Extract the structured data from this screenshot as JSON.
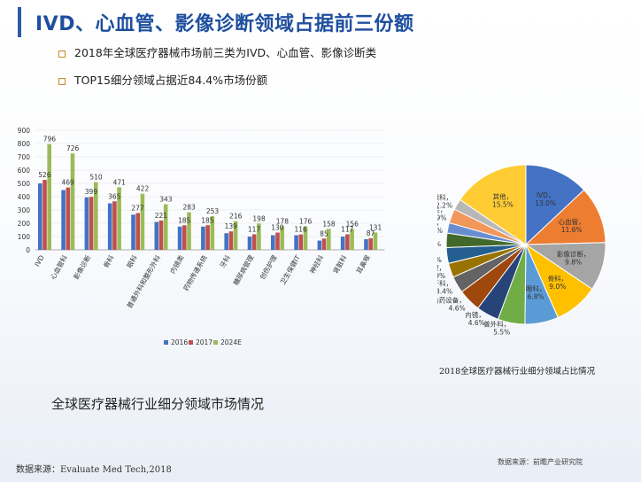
{
  "title": "IVD、心血管、影像诊断领域占据前三份额",
  "bullets": [
    "2018年全球医疗器械市场前三类为IVD、心血管、影像诊断类",
    "TOP15细分领域占据近84.4%市场份额"
  ],
  "bar_chart_title": "全球医疗器械行业细分领域市场情况",
  "pie_chart_title": "2018全球医疗器械行业细分领域占比情况",
  "source_left": "数据来源：Evaluate Med Tech,2018",
  "source_right": "数据来源：前瞻产业研究院",
  "chart_data": [
    {
      "type": "bar",
      "categories": [
        "IVD",
        "心血管科",
        "影像诊断",
        "骨科",
        "眼科",
        "普通外科和整形外科",
        "内镜类",
        "药物传递系统",
        "牙科",
        "糖尿病管理",
        "创伤护理",
        "卫生保健IT",
        "神经科",
        "肾脏科",
        "耳鼻喉"
      ],
      "series": [
        {
          "name": "2016",
          "values": [
            500,
            450,
            395,
            350,
            265,
            210,
            175,
            175,
            125,
            100,
            110,
            110,
            70,
            100,
            80
          ],
          "color": "#4472c4"
        },
        {
          "name": "2017",
          "values": [
            526,
            469,
            399,
            365,
            277,
            221,
            185,
            185,
            139,
            117,
            130,
            116,
            85,
            117,
            87
          ],
          "color": "#c0504d"
        },
        {
          "name": "2024E",
          "values": [
            796,
            726,
            510,
            471,
            422,
            343,
            283,
            253,
            216,
            198,
            178,
            176,
            158,
            156,
            131
          ],
          "color": "#9bbb59"
        }
      ],
      "data_labels": {
        "2017": [
          526,
          469,
          399,
          365,
          277,
          221,
          185,
          185,
          139,
          117,
          130,
          116,
          85,
          117,
          87
        ],
        "2024E": [
          796,
          726,
          510,
          471,
          422,
          343,
          283,
          253,
          216,
          198,
          178,
          176,
          158,
          156,
          131
        ]
      },
      "ylim": [
        0,
        900
      ],
      "yticks": [
        0,
        100,
        200,
        300,
        400,
        500,
        600,
        700,
        800,
        900
      ],
      "legend_position": "bottom"
    },
    {
      "type": "pie",
      "slices": [
        {
          "label": "IVD，13.0%",
          "value": 13.0,
          "color": "#4472c4"
        },
        {
          "label": "心血管，11.6%",
          "value": 11.6,
          "color": "#ed7d31"
        },
        {
          "label": "影像诊断，9.8%",
          "value": 9.8,
          "color": "#a5a5a5"
        },
        {
          "label": "骨科，9.0%",
          "value": 9.0,
          "color": "#ffc000"
        },
        {
          "label": "眼科，6.8%",
          "value": 6.8,
          "color": "#5b9bd5"
        },
        {
          "label": "普外科，5.5%",
          "value": 5.5,
          "color": "#70ad47"
        },
        {
          "label": "内镜，4.6%",
          "value": 4.6,
          "color": "#264478"
        },
        {
          "label": "给药设备，4.6%",
          "value": 4.6,
          "color": "#9e480e"
        },
        {
          "label": "牙科，3.4%",
          "value": 3.4,
          "color": "#636363"
        },
        {
          "label": "糖尿病管理，2.9%",
          "value": 2.9,
          "color": "#997300"
        },
        {
          "label": "创伤护理，3.2%",
          "value": 3.2,
          "color": "#255e91"
        },
        {
          "label": "医疗IT，2.9%",
          "value": 2.9,
          "color": "#43682b"
        },
        {
          "label": "神经科，2.1%",
          "value": 2.1,
          "color": "#698ed0"
        },
        {
          "label": "肾脏相关，2.9%",
          "value": 2.9,
          "color": "#f1975a"
        },
        {
          "label": "耳鼻喉科，2.2%",
          "value": 2.2,
          "color": "#b7b7b7"
        },
        {
          "label": "其他，15.5%",
          "value": 15.5,
          "color": "#ffcd33"
        }
      ]
    }
  ]
}
